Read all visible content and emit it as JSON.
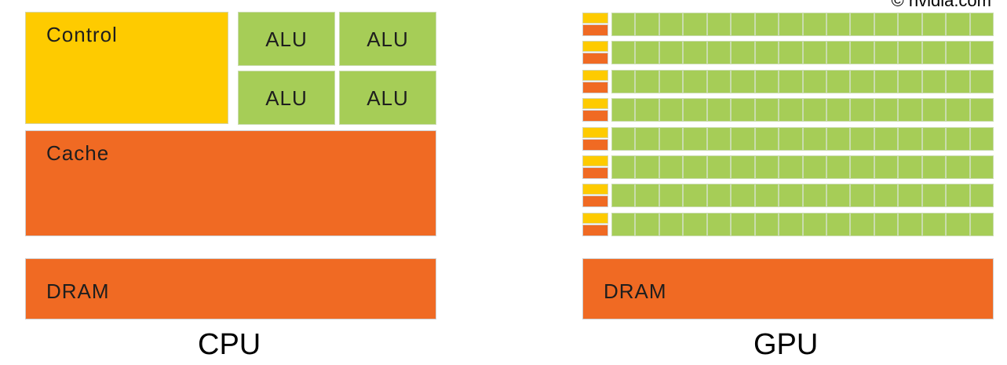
{
  "credit": "© nvidia.com",
  "cpu": {
    "control_label": "Control",
    "alu_labels": [
      "ALU",
      "ALU",
      "ALU",
      "ALU"
    ],
    "cache_label": "Cache",
    "dram_label": "DRAM",
    "caption": "CPU"
  },
  "gpu": {
    "row_count": 8,
    "alus_per_row": 16,
    "dram_label": "DRAM",
    "caption": "GPU"
  },
  "colors": {
    "control": "#fecb00",
    "alu": "#a6cd57",
    "cache_dram": "#f06a23"
  }
}
